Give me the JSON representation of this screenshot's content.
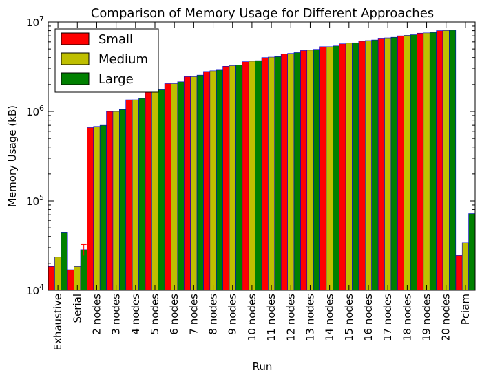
{
  "chart_data": {
    "type": "bar",
    "title": "Comparison of Memory Usage for Different Approaches",
    "xlabel": "Run",
    "ylabel": "Memory Usage (kB)",
    "yscale": "log",
    "ylim": [
      10000,
      10000000
    ],
    "ytick_labels": [
      {
        "value": 10000,
        "base": "10",
        "exp": "4"
      },
      {
        "value": 100000,
        "base": "10",
        "exp": "5"
      },
      {
        "value": 1000000,
        "base": "10",
        "exp": "6"
      },
      {
        "value": 10000000,
        "base": "10",
        "exp": "7"
      }
    ],
    "legend_position": "top-left",
    "categories": [
      "Exhaustive",
      "Serial",
      "2 nodes",
      "3 nodes",
      "4 nodes",
      "5 nodes",
      "6 nodes",
      "7 nodes",
      "8 nodes",
      "9 nodes",
      "10 nodes",
      "11 nodes",
      "12 nodes",
      "13 nodes",
      "14 nodes",
      "15 nodes",
      "16 nodes",
      "17 nodes",
      "18 nodes",
      "19 nodes",
      "20 nodes",
      "Pciam"
    ],
    "series": [
      {
        "name": "Small",
        "color": "#ff0000",
        "values": [
          18500,
          17000,
          660000,
          1000000,
          1350000,
          1650000,
          2050000,
          2450000,
          2800000,
          3200000,
          3600000,
          4000000,
          4400000,
          4800000,
          5300000,
          5700000,
          6100000,
          6600000,
          7000000,
          7500000,
          8000000,
          24500
        ],
        "errors": [
          0,
          0,
          0,
          0,
          0,
          0,
          0,
          0,
          0,
          0,
          0,
          0,
          0,
          0,
          0,
          0,
          0,
          0,
          0,
          0,
          0,
          0
        ]
      },
      {
        "name": "Medium",
        "color": "#bfbf00",
        "values": [
          23500,
          18500,
          680000,
          1000000,
          1350000,
          1650000,
          2050000,
          2450000,
          2850000,
          3250000,
          3650000,
          4050000,
          4450000,
          4850000,
          5300000,
          5800000,
          6200000,
          6650000,
          7100000,
          7550000,
          8050000,
          34000
        ],
        "errors": [
          0,
          0,
          0,
          0,
          0,
          0,
          0,
          0,
          0,
          0,
          0,
          0,
          0,
          0,
          0,
          0,
          0,
          0,
          0,
          0,
          0,
          0
        ]
      },
      {
        "name": "Large",
        "color": "#008000",
        "values": [
          44000,
          28500,
          700000,
          1050000,
          1400000,
          1750000,
          2150000,
          2550000,
          2900000,
          3300000,
          3700000,
          4100000,
          4550000,
          4950000,
          5400000,
          5850000,
          6300000,
          6750000,
          7200000,
          7650000,
          8100000,
          72000
        ],
        "errors": [
          0,
          4000,
          0,
          0,
          0,
          0,
          0,
          0,
          0,
          0,
          0,
          0,
          0,
          0,
          0,
          0,
          0,
          0,
          0,
          0,
          0,
          0
        ]
      }
    ]
  }
}
